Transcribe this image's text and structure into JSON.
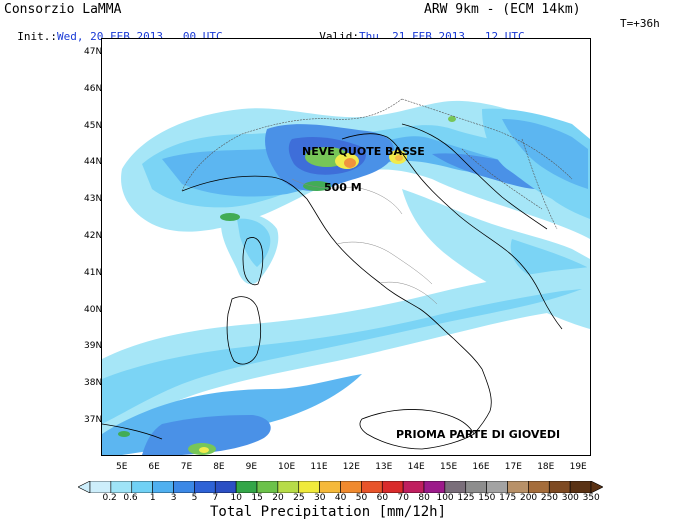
{
  "header": {
    "source": "Consorzio LaMMA",
    "model": "ARW 9km - (ECM 14km)",
    "init_label": "Init.:",
    "init_value": "Wed, 20 FEB 2013   00 UTC",
    "valid_label": "Valid:",
    "valid_value": "Thu, 21 FEB 2013   12 UTC",
    "lead_time": "T=+36h"
  },
  "latitudes": [
    "47N",
    "46N",
    "45N",
    "44N",
    "43N",
    "42N",
    "41N",
    "40N",
    "39N",
    "38N",
    "37N"
  ],
  "longitudes": [
    "5E",
    "6E",
    "7E",
    "8E",
    "9E",
    "10E",
    "11E",
    "12E",
    "13E",
    "14E",
    "15E",
    "16E",
    "17E",
    "18E",
    "19E"
  ],
  "annotations": {
    "snow": "NEVE QUOTE BASSE",
    "altitude": "500 M",
    "period": "PRIOMA PARTE DI GIOVEDI"
  },
  "colorbar": {
    "labels": [
      "0.2",
      "0.6",
      "1",
      "3",
      "5",
      "7",
      "10",
      "15",
      "20",
      "25",
      "30",
      "40",
      "50",
      "60",
      "70",
      "80",
      "100",
      "125",
      "150",
      "175",
      "200",
      "250",
      "300",
      "350"
    ],
    "colors": [
      "#cdeefb",
      "#9fe4f7",
      "#70d1f5",
      "#4fb0f0",
      "#3b88e6",
      "#2e62d6",
      "#2b4fc4",
      "#33a648",
      "#6cc24a",
      "#b7dc48",
      "#f0ea3c",
      "#f5b93a",
      "#f08a2e",
      "#e8542a",
      "#d92b2b",
      "#c01f5f",
      "#9c1a8a",
      "#7a6e7a",
      "#8d8d8d",
      "#a3a3a3",
      "#b89168",
      "#a56d3b",
      "#7e4a22",
      "#5a3214"
    ],
    "title": "Total Precipitation [mm/12h]"
  }
}
